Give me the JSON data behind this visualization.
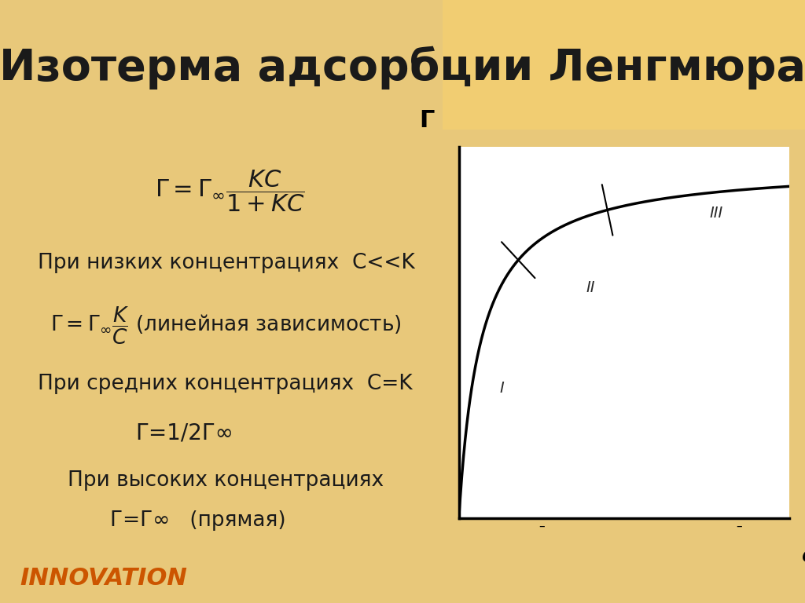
{
  "title": "Изотерма адсорбции Ленгмюра",
  "title_fontsize": 40,
  "title_color": "#1a1a1a",
  "header_bg": "#ffffff",
  "slide_bg_left": "#ffffff",
  "slide_bg_right": "#f5d580",
  "content_bg": "#ffffff",
  "outer_bg": "#e8c87a",
  "orange_line_color": "#e8a020",
  "innovation_text": "INNOVATION",
  "innovation_color": "#cc5500",
  "text_line1": "При низких концентрациях  C<<K",
  "text_line3": "При средних концентрациях  C=K",
  "text_line4": "Г=1/2Г∞",
  "text_line5": "При высоких концентрациях",
  "text_line6": "Г=Г∞   (прямая)",
  "graph_ylabel": "Г",
  "graph_xlabel": "c",
  "graph_label_I": "I",
  "graph_label_II": "II",
  "graph_label_III": "III",
  "curve_color": "#000000",
  "axis_color": "#000000",
  "graph_bg": "#ffffff",
  "text_fontsize": 19,
  "K_langmuir": 1.5,
  "c_max": 10.0,
  "tick1_c": 1.8,
  "tick2_c": 4.5
}
